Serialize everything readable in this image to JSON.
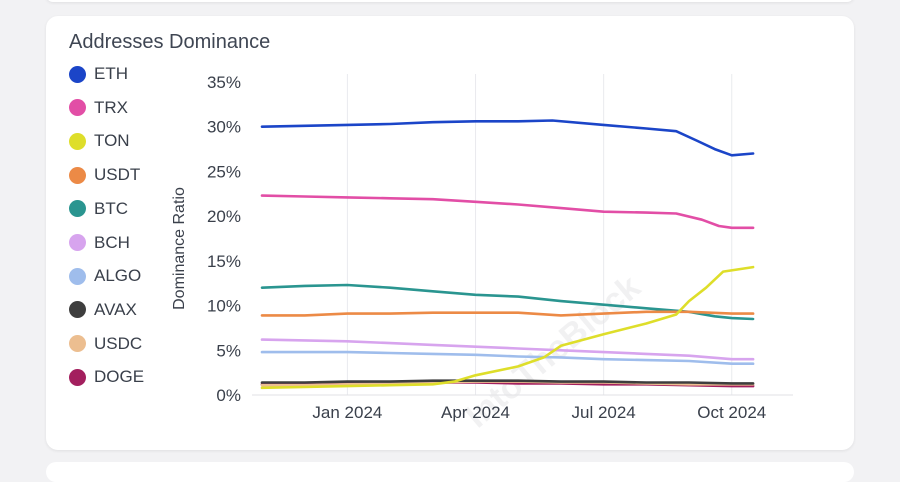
{
  "chart_data": {
    "type": "line",
    "title": "Addresses Dominance",
    "ylabel": "Dominance Ratio",
    "xlabel": "",
    "ylim": [
      0,
      35
    ],
    "yticks": [
      "0%",
      "5%",
      "10%",
      "15%",
      "20%",
      "25%",
      "30%",
      "35%"
    ],
    "xticks": [
      {
        "label": "Jan 2024",
        "x": 1
      },
      {
        "label": "Apr 2024",
        "x": 4
      },
      {
        "label": "Jul 2024",
        "x": 7
      },
      {
        "label": "Oct 2024",
        "x": 10
      }
    ],
    "xlim": [
      -1,
      11.2
    ],
    "grid": "vertical",
    "legend": "left",
    "series": [
      {
        "name": "ETH",
        "color": "#1b45c8",
        "points": [
          [
            -1,
            30.0
          ],
          [
            0,
            30.1
          ],
          [
            1,
            30.2
          ],
          [
            2,
            30.3
          ],
          [
            3,
            30.5
          ],
          [
            4,
            30.6
          ],
          [
            5,
            30.6
          ],
          [
            5.8,
            30.7
          ],
          [
            7,
            30.2
          ],
          [
            8,
            29.8
          ],
          [
            8.7,
            29.5
          ],
          [
            9.2,
            28.4
          ],
          [
            9.6,
            27.5
          ],
          [
            10,
            26.8
          ],
          [
            10.5,
            27.0
          ]
        ]
      },
      {
        "name": "TRX",
        "color": "#e24ea6",
        "points": [
          [
            -1,
            22.3
          ],
          [
            0,
            22.2
          ],
          [
            1,
            22.1
          ],
          [
            2,
            22.0
          ],
          [
            3,
            21.9
          ],
          [
            4,
            21.6
          ],
          [
            5,
            21.3
          ],
          [
            6,
            20.9
          ],
          [
            7,
            20.5
          ],
          [
            8,
            20.4
          ],
          [
            8.7,
            20.3
          ],
          [
            9.3,
            19.6
          ],
          [
            9.7,
            18.9
          ],
          [
            10,
            18.7
          ],
          [
            10.5,
            18.7
          ]
        ]
      },
      {
        "name": "TON",
        "color": "#dede2a",
        "points": [
          [
            -1,
            0.8
          ],
          [
            0,
            0.9
          ],
          [
            1,
            1.0
          ],
          [
            2,
            1.1
          ],
          [
            3,
            1.2
          ],
          [
            3.5,
            1.5
          ],
          [
            4,
            2.2
          ],
          [
            5,
            3.2
          ],
          [
            5.6,
            4.2
          ],
          [
            6,
            5.5
          ],
          [
            7,
            6.8
          ],
          [
            8,
            8.0
          ],
          [
            8.7,
            9.0
          ],
          [
            9,
            10.5
          ],
          [
            9.4,
            12.0
          ],
          [
            9.8,
            13.8
          ],
          [
            10.5,
            14.3
          ]
        ]
      },
      {
        "name": "USDT",
        "color": "#ec8a46",
        "points": [
          [
            -1,
            8.9
          ],
          [
            0,
            8.9
          ],
          [
            1,
            9.1
          ],
          [
            2,
            9.1
          ],
          [
            3,
            9.2
          ],
          [
            4,
            9.2
          ],
          [
            5,
            9.2
          ],
          [
            6,
            8.9
          ],
          [
            7,
            9.1
          ],
          [
            8,
            9.3
          ],
          [
            9,
            9.3
          ],
          [
            10,
            9.1
          ],
          [
            10.5,
            9.1
          ]
        ]
      },
      {
        "name": "BTC",
        "color": "#2a9590",
        "points": [
          [
            -1,
            12.0
          ],
          [
            0,
            12.2
          ],
          [
            1,
            12.3
          ],
          [
            2,
            12.0
          ],
          [
            3,
            11.6
          ],
          [
            4,
            11.2
          ],
          [
            5,
            11.0
          ],
          [
            6,
            10.5
          ],
          [
            7,
            10.1
          ],
          [
            8,
            9.7
          ],
          [
            9,
            9.3
          ],
          [
            9.6,
            8.8
          ],
          [
            10,
            8.6
          ],
          [
            10.5,
            8.5
          ]
        ]
      },
      {
        "name": "BCH",
        "color": "#d7a4ee",
        "points": [
          [
            -1,
            6.2
          ],
          [
            0,
            6.1
          ],
          [
            1,
            6.0
          ],
          [
            2,
            5.8
          ],
          [
            3,
            5.6
          ],
          [
            4,
            5.4
          ],
          [
            5,
            5.2
          ],
          [
            6,
            5.0
          ],
          [
            7,
            4.8
          ],
          [
            8,
            4.6
          ],
          [
            9,
            4.4
          ],
          [
            10,
            4.0
          ],
          [
            10.5,
            4.0
          ]
        ]
      },
      {
        "name": "ALGO",
        "color": "#9fbdec",
        "points": [
          [
            -1,
            4.8
          ],
          [
            0,
            4.8
          ],
          [
            1,
            4.8
          ],
          [
            2,
            4.7
          ],
          [
            3,
            4.6
          ],
          [
            4,
            4.5
          ],
          [
            5,
            4.3
          ],
          [
            6,
            4.2
          ],
          [
            7,
            4.0
          ],
          [
            8,
            3.9
          ],
          [
            9,
            3.8
          ],
          [
            10,
            3.5
          ],
          [
            10.5,
            3.5
          ]
        ]
      },
      {
        "name": "AVAX",
        "color": "#3e3e3e",
        "points": [
          [
            -1,
            1.4
          ],
          [
            0,
            1.4
          ],
          [
            1,
            1.5
          ],
          [
            2,
            1.5
          ],
          [
            3,
            1.6
          ],
          [
            4,
            1.6
          ],
          [
            5,
            1.6
          ],
          [
            6,
            1.5
          ],
          [
            7,
            1.5
          ],
          [
            8,
            1.4
          ],
          [
            9,
            1.4
          ],
          [
            10,
            1.3
          ],
          [
            10.5,
            1.3
          ]
        ]
      },
      {
        "name": "USDC",
        "color": "#ecbe90",
        "points": [
          [
            -1,
            1.1
          ],
          [
            0,
            1.1
          ],
          [
            1,
            1.2
          ],
          [
            2,
            1.3
          ],
          [
            3,
            1.4
          ],
          [
            4,
            1.5
          ],
          [
            5,
            1.5
          ],
          [
            6,
            1.4
          ],
          [
            7,
            1.4
          ],
          [
            8,
            1.3
          ],
          [
            9,
            1.2
          ],
          [
            10,
            1.2
          ],
          [
            10.5,
            1.2
          ]
        ]
      },
      {
        "name": "DOGE",
        "color": "#a31f5e",
        "points": [
          [
            -1,
            1.2
          ],
          [
            0,
            1.2
          ],
          [
            1,
            1.3
          ],
          [
            2,
            1.3
          ],
          [
            3,
            1.4
          ],
          [
            4,
            1.4
          ],
          [
            5,
            1.3
          ],
          [
            6,
            1.3
          ],
          [
            7,
            1.2
          ],
          [
            8,
            1.2
          ],
          [
            9,
            1.1
          ],
          [
            10,
            1.0
          ],
          [
            10.5,
            1.0
          ]
        ]
      }
    ]
  }
}
